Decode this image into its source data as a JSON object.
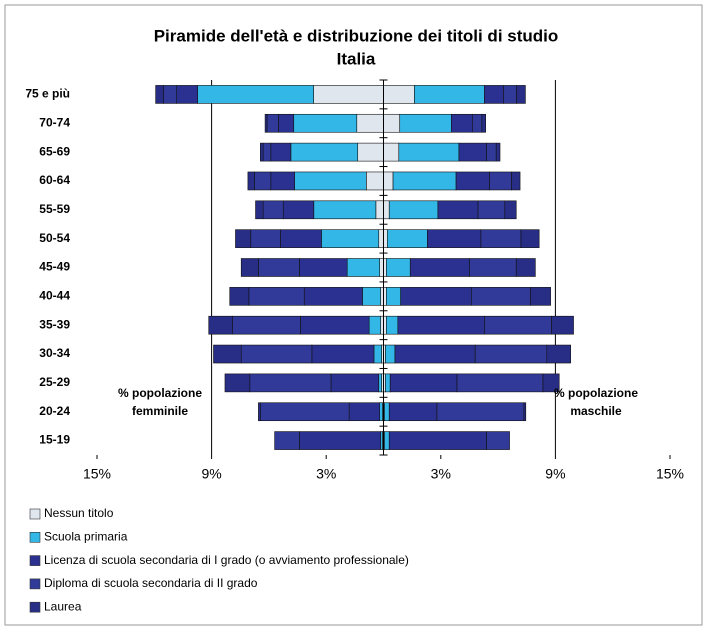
{
  "chart_data": {
    "type": "pyramid",
    "title": "Piramide dell'età e distribuzione dei titoli di studio",
    "subtitle": "Italia",
    "categories": [
      "75 e più",
      "70-74",
      "65-69",
      "60-64",
      "55-59",
      "50-54",
      "45-49",
      "40-44",
      "35-39",
      "30-34",
      "25-29",
      "20-24",
      "15-19"
    ],
    "annotations": [
      "% popolazione femminile",
      "% popolazione maschile"
    ],
    "xlim": [
      -15,
      15
    ],
    "xticks": [
      {
        "value": -15,
        "label": "15%"
      },
      {
        "value": -9,
        "label": "9%"
      },
      {
        "value": -3,
        "label": "3%"
      },
      {
        "value": 3,
        "label": "3%"
      },
      {
        "value": 9,
        "label": "9%"
      },
      {
        "value": 15,
        "label": "15%"
      }
    ],
    "xgrid": [
      -9,
      9
    ],
    "series": [
      {
        "name": "Nessun titolo",
        "color": "#dfe6ee",
        "female": [
          -3.66,
          -1.4,
          -1.35,
          -0.9,
          -0.4,
          -0.25,
          -0.2,
          -0.15,
          -0.15,
          -0.1,
          -0.1,
          -0.05,
          -0.05
        ],
        "male": [
          1.62,
          0.85,
          0.8,
          0.5,
          0.3,
          0.2,
          0.15,
          0.15,
          0.15,
          0.1,
          0.1,
          0.05,
          0.05
        ]
      },
      {
        "name": "Scuola primaria",
        "color": "#33b7e6",
        "female": [
          -6.07,
          -3.3,
          -3.5,
          -3.75,
          -3.25,
          -3.0,
          -1.7,
          -0.95,
          -0.6,
          -0.4,
          -0.15,
          -0.15,
          -0.1
        ],
        "male": [
          3.66,
          2.7,
          3.15,
          3.3,
          2.55,
          2.1,
          1.25,
          0.75,
          0.6,
          0.5,
          0.25,
          0.25,
          0.25
        ]
      },
      {
        "name": "Licenza di scuola secondaria di I grado (o avviamento professionale)",
        "color": "#2b3190",
        "female": [
          -1.1,
          -0.8,
          -1.05,
          -1.25,
          -1.6,
          -2.15,
          -2.5,
          -3.05,
          -3.6,
          -3.25,
          -2.5,
          -1.6,
          -4.25
        ],
        "male": [
          1.0,
          1.1,
          1.45,
          1.75,
          2.1,
          2.8,
          3.1,
          3.7,
          4.55,
          4.2,
          3.5,
          2.5,
          5.1
        ]
      },
      {
        "name": "Diploma di scuola secondaria di II grado",
        "color": "#313a99",
        "female": [
          -0.68,
          -0.6,
          -0.4,
          -0.85,
          -1.05,
          -1.55,
          -2.15,
          -2.9,
          -3.55,
          -3.7,
          -4.25,
          -4.65,
          -1.3
        ],
        "male": [
          0.68,
          0.5,
          0.5,
          1.15,
          1.4,
          2.1,
          2.45,
          3.1,
          3.5,
          3.75,
          4.5,
          4.55,
          1.2
        ]
      },
      {
        "name": "Laurea",
        "color": "#282d86",
        "female": [
          -0.42,
          -0.1,
          -0.15,
          -0.35,
          -0.4,
          -0.8,
          -0.9,
          -1.0,
          -1.25,
          -1.45,
          -1.3,
          -0.1,
          0
        ],
        "male": [
          0.47,
          0.2,
          0.2,
          0.45,
          0.6,
          0.95,
          1.0,
          1.05,
          1.15,
          1.25,
          0.85,
          0.1,
          0
        ]
      }
    ]
  }
}
